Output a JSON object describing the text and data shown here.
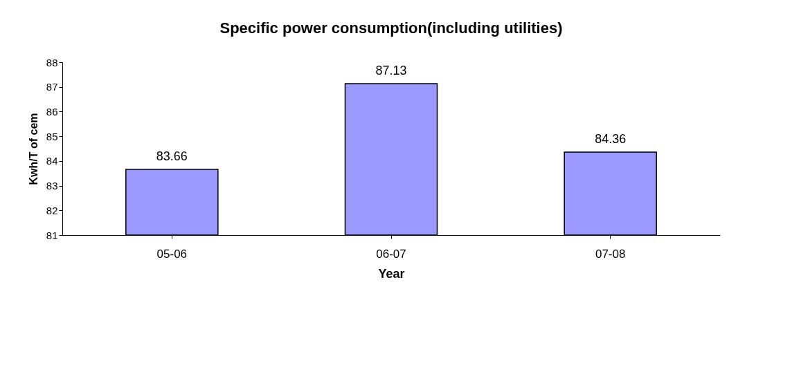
{
  "chart_data": {
    "type": "bar",
    "title": "Specific power consumption(including  utilities)",
    "xlabel": "Year",
    "ylabel": "Kwh/T of cem",
    "categories": [
      "05-06",
      "06-07",
      "07-08"
    ],
    "values": [
      83.66,
      87.13,
      84.36
    ],
    "color": "#9999ff",
    "ylim": [
      81,
      88
    ],
    "yticks": [
      81,
      82,
      83,
      84,
      85,
      86,
      87,
      88
    ],
    "grid": false,
    "data_labels": true
  }
}
